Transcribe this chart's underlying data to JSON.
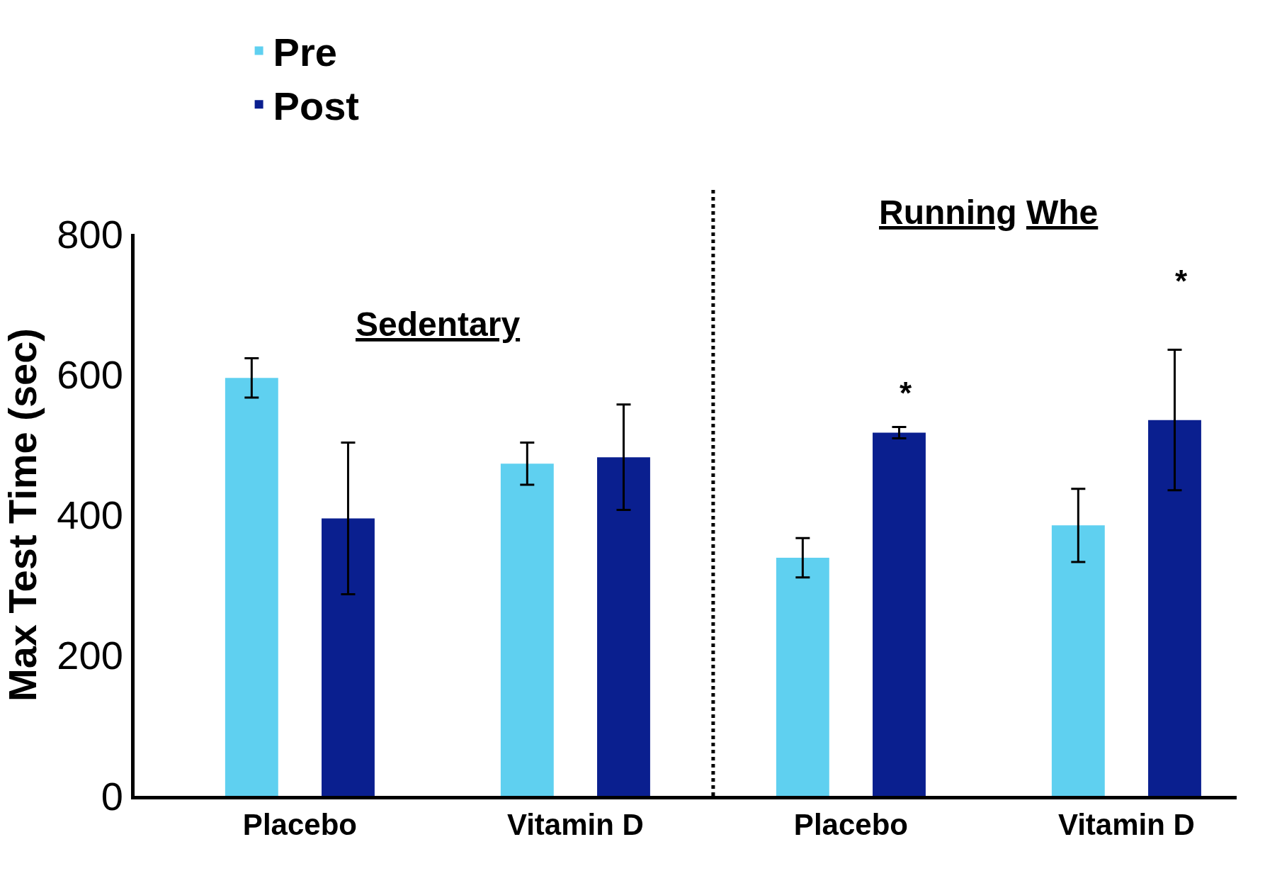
{
  "chart_data": {
    "type": "bar",
    "ylabel": "Max Test Time (sec)",
    "categories": [
      "Placebo",
      "Vitamin D",
      "Placebo",
      "Vitamin D"
    ],
    "series": [
      {
        "name": "Pre",
        "color": "#5fd0f0",
        "values": [
          595,
          473,
          339,
          385
        ],
        "errors": [
          28,
          30,
          28,
          52
        ]
      },
      {
        "name": "Post",
        "color": "#0a1f8f",
        "values": [
          395,
          482,
          517,
          535
        ],
        "errors": [
          108,
          75,
          8,
          100
        ]
      }
    ],
    "ylim": [
      0,
      800
    ],
    "yticks": [
      0,
      200,
      400,
      600,
      800
    ],
    "annotations": [
      "Sedentary",
      "Running Whe",
      "*",
      "*"
    ],
    "legend": "top left"
  }
}
